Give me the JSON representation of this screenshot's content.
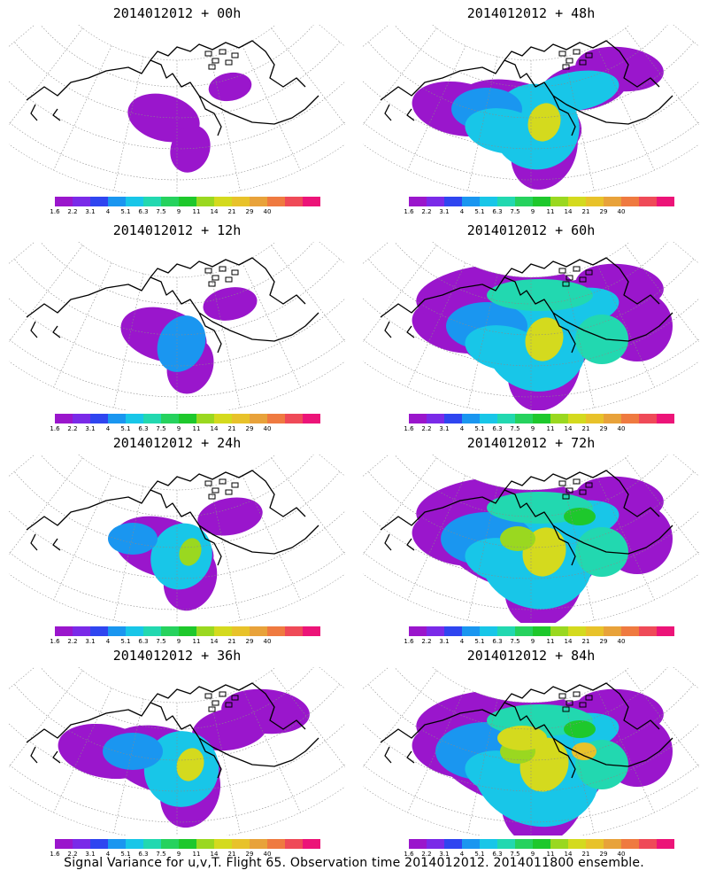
{
  "colorbar": {
    "colors": [
      "#9a16cc",
      "#7a2ae8",
      "#2f45f0",
      "#1a96f0",
      "#18c6e8",
      "#22d8b0",
      "#26d25e",
      "#1ec82c",
      "#9ad820",
      "#d4da1e",
      "#e8c22a",
      "#e8a23a",
      "#ef7a40",
      "#ef4a58",
      "#ec1478"
    ],
    "tick_labels": [
      "1.6",
      "2.2",
      "3.1",
      "4",
      "5.1",
      "6.3",
      "7.5",
      "9",
      "11",
      "14",
      "21",
      "29",
      "40"
    ]
  },
  "panels": [
    {
      "title": "2014012012 + 00h",
      "intensity": 0
    },
    {
      "title": "2014012012 + 48h",
      "intensity": 4
    },
    {
      "title": "2014012012 + 12h",
      "intensity": 1
    },
    {
      "title": "2014012012 + 60h",
      "intensity": 5
    },
    {
      "title": "2014012012 + 24h",
      "intensity": 2
    },
    {
      "title": "2014012012 + 72h",
      "intensity": 6
    },
    {
      "title": "2014012012 + 36h",
      "intensity": 3
    },
    {
      "title": "2014012012 + 84h",
      "intensity": 7
    }
  ],
  "footer": "Signal Variance for u,v,T. Flight 65. Observation time 2014012012. 2014011800 ensemble."
}
